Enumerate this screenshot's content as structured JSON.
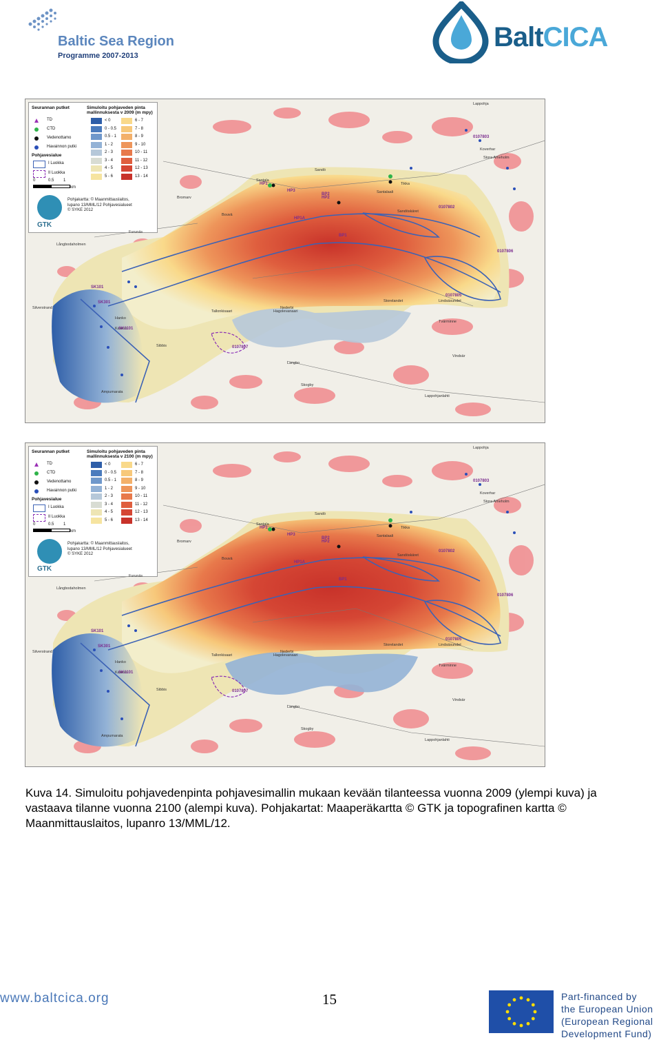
{
  "header": {
    "bsr_logo": {
      "title": "Baltic Sea Region",
      "subtitle": "Programme 2007-2013"
    },
    "baltcica_logo": {
      "part1": "Balt",
      "part2": "CICA"
    }
  },
  "maps": [
    {
      "id": "2009",
      "legend": {
        "col1_title": "Seurannan putket",
        "col2_title": "Simuloitu pohjaveden pinta mallinnuksesta v 2009 (m mpy)",
        "monitoring": [
          "TD",
          "CTD",
          "Vedenottamo",
          "Havainnon putki"
        ],
        "aquifer_title": "Pohjavesialue",
        "aquifer": [
          "I Luokka",
          "II Luokka"
        ],
        "classes_left": [
          "< 0",
          "0 - 0.5",
          "0.5 - 1",
          "1 - 2",
          "2 - 3",
          "3 - 4",
          "4 - 5",
          "5 - 6"
        ],
        "classes_right": [
          "6 - 7",
          "7 - 8",
          "8 - 9",
          "9 - 10",
          "10 - 11",
          "11 - 12",
          "12 - 13",
          "13 - 14"
        ],
        "colors_left": [
          "#2e5ea8",
          "#4a7bbd",
          "#6f98cb",
          "#93b2d6",
          "#b6c8d9",
          "#d8dcd3",
          "#eee5b4",
          "#f6e4a0"
        ],
        "colors_right": [
          "#f9d98a",
          "#f7c87a",
          "#f3b06a",
          "#ee955a",
          "#e8794b",
          "#df5e3e",
          "#d54634",
          "#c8322a"
        ],
        "scale": [
          "0",
          "0.5",
          "1",
          "km"
        ],
        "gtk": "GTK",
        "credits": [
          "Pohjakartta: © Maanmittauslaitos,",
          "lupano 13/MML/12 Pohjavesialueet",
          "© SYKE 2012"
        ]
      }
    },
    {
      "id": "2100",
      "legend": {
        "col1_title": "Seurannan putket",
        "col2_title": "Simuloitu pohjaveden pinta mallinnuksesta v 2100 (m mpy)",
        "monitoring": [
          "TD",
          "CTD",
          "Vedenottamo",
          "Havainnon putki"
        ],
        "aquifer_title": "Pohjavesialue",
        "aquifer": [
          "I Luokka",
          "II Luokka"
        ],
        "classes_left": [
          "< 0",
          "0 - 0.5",
          "0.5 - 1",
          "1 - 2",
          "2 - 3",
          "3 - 4",
          "4 - 5",
          "5 - 6"
        ],
        "classes_right": [
          "6 - 7",
          "7 - 8",
          "8 - 9",
          "9 - 10",
          "10 - 11",
          "11 - 12",
          "12 - 13",
          "13 - 14"
        ],
        "colors_left": [
          "#2e5ea8",
          "#4a7bbd",
          "#6f98cb",
          "#93b2d6",
          "#b6c8d9",
          "#d8dcd3",
          "#eee5b4",
          "#f6e4a0"
        ],
        "colors_right": [
          "#f9d98a",
          "#f7c87a",
          "#f3b06a",
          "#ee955a",
          "#e8794b",
          "#df5e3e",
          "#d54634",
          "#c8322a"
        ],
        "scale": [
          "0",
          "0.5",
          "1",
          "km"
        ],
        "gtk": "GTK",
        "credits": [
          "Pohjakartta: © Maanmittauslaitos,",
          "lupano 13/MML/12 Pohjavesialueet",
          "© SYKE 2012"
        ]
      }
    }
  ],
  "map_labels": {
    "places": [
      "Lappohja",
      "Koverhar",
      "Stora Ameholm",
      "Sandö",
      "Santala",
      "Tikka",
      "Santalaali",
      "Bromarv",
      "Bouvä",
      "Furunäs",
      "Långbodaholmen",
      "Silverstrand",
      "Tallonkisaari",
      "Hanko",
      "Kamoo",
      "Hagolevanaari",
      "Sibbis",
      "Ampumarata",
      "Lindsäsundet",
      "Sandöskäret",
      "Storelandet",
      "Tvärminne",
      "Nederbi",
      "Langbo",
      "Vindsär",
      "Lappohjanlahti",
      "Skogby"
    ],
    "sites": [
      "HP1",
      "HP1A",
      "HP2",
      "HP3",
      "SK101",
      "SK301",
      "SK1101",
      "0107802",
      "0107806",
      "0107805",
      "0107807",
      "0107803",
      "BP1",
      "BP2"
    ]
  },
  "caption": "Kuva 14. Simuloitu pohjavedenpinta pohjavesimallin mukaan kevään tilanteessa vuonna 2009 (ylempi kuva) ja vastaava tilanne vuonna 2100 (alempi kuva). Pohjakartat: Maaperäkartta © GTK ja topografinen kartta © Maanmittauslaitos, lupanro 13/MML/12.",
  "footer": {
    "url": "www.baltcica.org",
    "page_number": "15",
    "funding": [
      "Part-financed by",
      "the European Union",
      "(European Regional",
      "Development Fund)"
    ]
  }
}
